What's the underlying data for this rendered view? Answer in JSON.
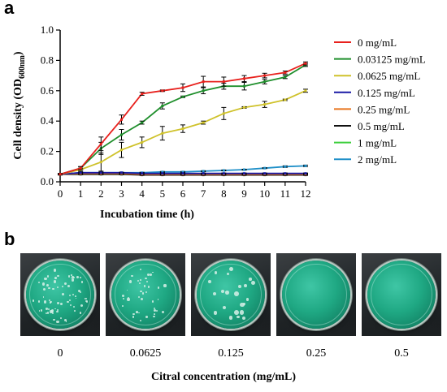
{
  "panels": {
    "a": "a",
    "b": "b"
  },
  "chart_data": {
    "type": "line",
    "title": "",
    "xlabel": "Incubation time (h)",
    "ylabel_main": "Cell density (OD",
    "ylabel_sub": "600nm",
    "ylabel_end": ")",
    "xlim": [
      0,
      12
    ],
    "ylim": [
      0,
      1.0
    ],
    "xticks": [
      0,
      1,
      2,
      3,
      4,
      5,
      6,
      7,
      8,
      9,
      10,
      11,
      12
    ],
    "yticks": [
      0.0,
      0.2,
      0.4,
      0.6,
      0.8,
      1.0
    ],
    "ytick_labels": [
      "0.0",
      "0.2",
      "0.4",
      "0.6",
      "0.8",
      "1.0"
    ],
    "x": [
      0,
      1,
      2,
      3,
      4,
      5,
      6,
      7,
      8,
      9,
      10,
      11,
      12
    ],
    "legend_position": "right",
    "grid": false,
    "series": [
      {
        "name": "0 mg/mL",
        "color": "#e8211d",
        "values": [
          0.05,
          0.09,
          0.25,
          0.41,
          0.58,
          0.6,
          0.62,
          0.66,
          0.66,
          0.68,
          0.7,
          0.72,
          0.78
        ],
        "errors": [
          0.005,
          0.01,
          0.045,
          0.03,
          0.01,
          0.005,
          0.025,
          0.035,
          0.03,
          0.02,
          0.015,
          0.01,
          0.01
        ]
      },
      {
        "name": "0.03125 mg/mL",
        "color": "#1f8f2c",
        "values": [
          0.05,
          0.09,
          0.22,
          0.31,
          0.39,
          0.5,
          0.56,
          0.6,
          0.63,
          0.63,
          0.66,
          0.69,
          0.77
        ],
        "errors": [
          0.005,
          0.01,
          0.04,
          0.035,
          0.01,
          0.02,
          0.005,
          0.02,
          0.02,
          0.025,
          0.015,
          0.01,
          0.01
        ]
      },
      {
        "name": "0.0625 mg/mL",
        "color": "#cfc22b",
        "values": [
          0.05,
          0.08,
          0.13,
          0.21,
          0.26,
          0.32,
          0.35,
          0.39,
          0.45,
          0.49,
          0.51,
          0.54,
          0.6
        ],
        "errors": [
          0.005,
          0.01,
          0.06,
          0.05,
          0.035,
          0.045,
          0.025,
          0.01,
          0.04,
          0.005,
          0.02,
          0.005,
          0.01
        ]
      },
      {
        "name": "0.125 mg/mL",
        "color": "#1a1aa6",
        "values": [
          0.05,
          0.06,
          0.06,
          0.06,
          0.055,
          0.055,
          0.055,
          0.055,
          0.055,
          0.055,
          0.055,
          0.055,
          0.055
        ],
        "errors": [
          0.003,
          0.003,
          0.003,
          0.003,
          0.003,
          0.003,
          0.003,
          0.003,
          0.003,
          0.003,
          0.003,
          0.003,
          0.003
        ]
      },
      {
        "name": "0.25 mg/mL",
        "color": "#e8741d",
        "values": [
          0.05,
          0.055,
          0.055,
          0.055,
          0.05,
          0.05,
          0.05,
          0.05,
          0.05,
          0.05,
          0.05,
          0.05,
          0.05
        ],
        "errors": [
          0.003,
          0.003,
          0.003,
          0.003,
          0.003,
          0.003,
          0.003,
          0.003,
          0.003,
          0.003,
          0.003,
          0.003,
          0.003
        ]
      },
      {
        "name": "0.5 mg/mL",
        "color": "#111111",
        "values": [
          0.05,
          0.05,
          0.05,
          0.05,
          0.045,
          0.045,
          0.045,
          0.045,
          0.045,
          0.045,
          0.045,
          0.045,
          0.045
        ],
        "errors": [
          0.003,
          0.003,
          0.003,
          0.003,
          0.003,
          0.003,
          0.003,
          0.003,
          0.003,
          0.003,
          0.003,
          0.003,
          0.003
        ]
      },
      {
        "name": "1 mg/mL",
        "color": "#3ccf3c",
        "values": [
          0.05,
          0.05,
          0.05,
          0.05,
          0.05,
          0.05,
          0.05,
          0.05,
          0.05,
          0.05,
          0.05,
          0.05,
          0.05
        ],
        "errors": [
          0.003,
          0.003,
          0.003,
          0.003,
          0.003,
          0.003,
          0.003,
          0.003,
          0.003,
          0.003,
          0.003,
          0.003,
          0.003
        ]
      },
      {
        "name": "2 mg/mL",
        "color": "#1e8fc8",
        "values": [
          0.05,
          0.06,
          0.06,
          0.06,
          0.06,
          0.065,
          0.065,
          0.07,
          0.075,
          0.08,
          0.09,
          0.1,
          0.105
        ],
        "errors": [
          0.003,
          0.003,
          0.003,
          0.003,
          0.003,
          0.003,
          0.003,
          0.003,
          0.003,
          0.003,
          0.003,
          0.005,
          0.005
        ]
      }
    ]
  },
  "plates": {
    "xlabel": "Citral concentration (mg/mL)",
    "items": [
      {
        "label": "0",
        "colony_density": "dense"
      },
      {
        "label": "0.0625",
        "colony_density": "moderate"
      },
      {
        "label": "0.125",
        "colony_density": "sparse"
      },
      {
        "label": "0.25",
        "colony_density": "none"
      },
      {
        "label": "0.5",
        "colony_density": "none"
      }
    ]
  }
}
